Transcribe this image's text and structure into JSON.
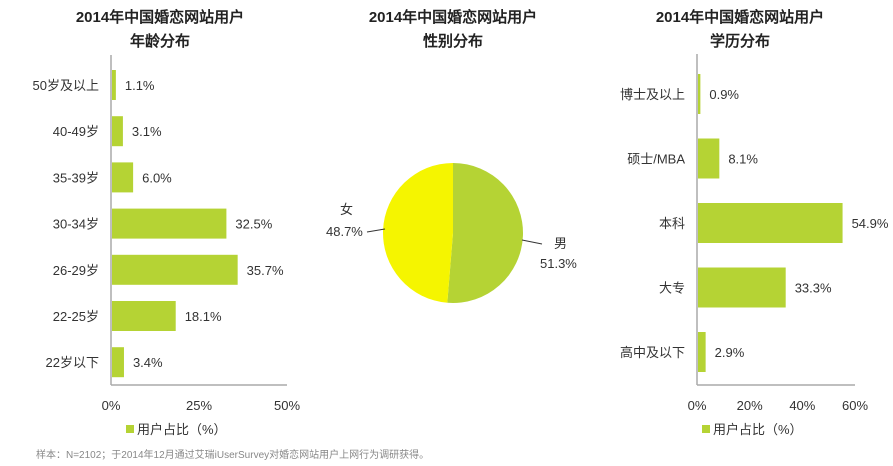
{
  "colors": {
    "bar": "#b5d334",
    "male": "#b5d334",
    "female": "#f5f500",
    "axis": "#aaaaaa"
  },
  "note": "样本：N=2102；于2014年12月通过艾瑞iUserSurvey对婚恋网站用户上网行为调研获得。",
  "chart_data": [
    {
      "type": "bar",
      "orientation": "horizontal",
      "title": [
        "2014年中国婚恋网站用户",
        "年龄分布"
      ],
      "categories": [
        "50岁及以上",
        "40-49岁",
        "35-39岁",
        "30-34岁",
        "26-29岁",
        "22-25岁",
        "22岁以下"
      ],
      "values": [
        1.1,
        3.1,
        6.0,
        32.5,
        35.7,
        18.1,
        3.4
      ],
      "labels": [
        "1.1%",
        "3.1%",
        "6.0%",
        "32.5%",
        "35.7%",
        "18.1%",
        "3.4%"
      ],
      "xlim": [
        0,
        50
      ],
      "ticks": [
        "0%",
        "25%",
        "50%"
      ],
      "tick_values": [
        0,
        25,
        50
      ],
      "legend": "用户占比（%）"
    },
    {
      "type": "pie",
      "title": [
        "2014年中国婚恋网站用户",
        "性别分布"
      ],
      "slices": [
        {
          "name": "男",
          "value": 51.3,
          "label": "51.3%"
        },
        {
          "name": "女",
          "value": 48.7,
          "label": "48.7%"
        }
      ]
    },
    {
      "type": "bar",
      "orientation": "horizontal",
      "title": [
        "2014年中国婚恋网站用户",
        "学历分布"
      ],
      "categories": [
        "博士及以上",
        "硕士/MBA",
        "本科",
        "大专",
        "高中及以下"
      ],
      "values": [
        0.9,
        8.1,
        54.9,
        33.3,
        2.9
      ],
      "labels": [
        "0.9%",
        "8.1%",
        "54.9%",
        "33.3%",
        "2.9%"
      ],
      "xlim": [
        0,
        60
      ],
      "ticks": [
        "0%",
        "20%",
        "40%",
        "60%"
      ],
      "tick_values": [
        0,
        20,
        40,
        60
      ],
      "legend": "用户占比（%）"
    }
  ]
}
